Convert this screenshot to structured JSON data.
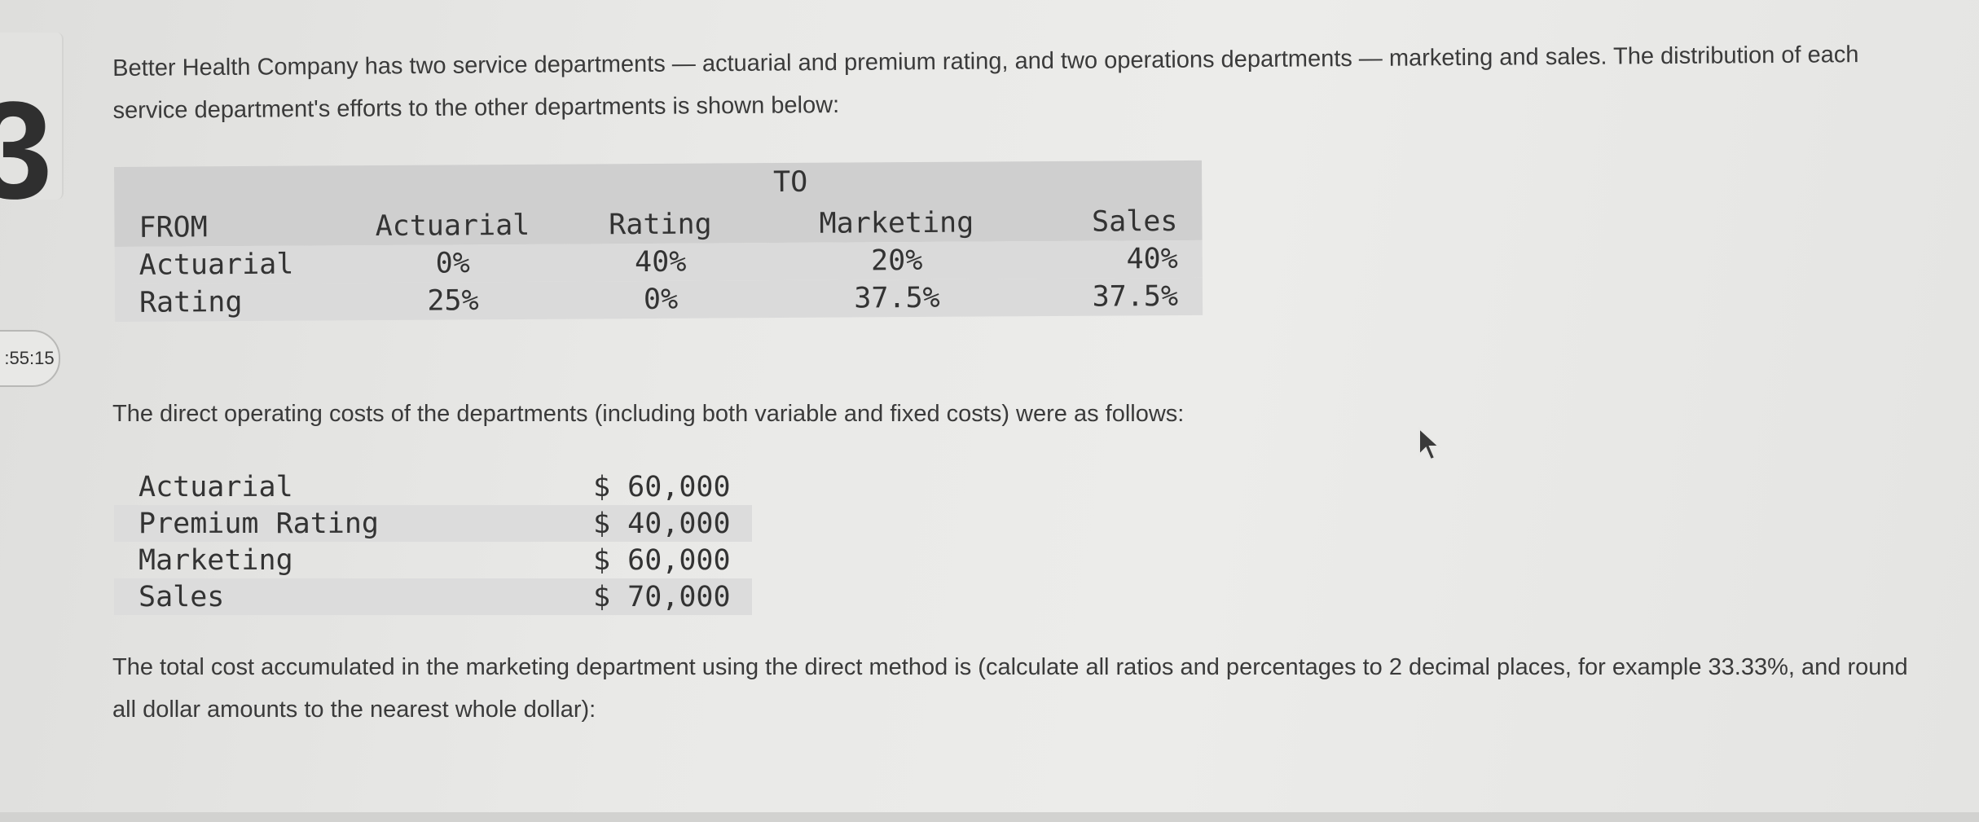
{
  "question_number": "3",
  "timer": ":55:15",
  "intro_text": "Better Health Company has two service departments — actuarial and premium rating, and two operations departments — marketing and sales. The distribution of each service department's efforts to the other departments is shown below:",
  "distribution_table": {
    "to_label": "TO",
    "headers": [
      "FROM",
      "Actuarial",
      "Rating",
      "Marketing",
      "Sales"
    ],
    "rows": [
      [
        "Actuarial",
        "0%",
        "40%",
        "20%",
        "40%"
      ],
      [
        "Rating",
        "25%",
        "0%",
        "37.5%",
        "37.5%"
      ]
    ]
  },
  "costs_intro": "The direct operating costs of the departments (including both variable and fixed costs) were as follows:",
  "costs_table": [
    {
      "name": "Actuarial",
      "amount": "$ 60,000"
    },
    {
      "name": "Premium Rating",
      "amount": "$ 40,000"
    },
    {
      "name": "Marketing",
      "amount": "$ 60,000"
    },
    {
      "name": "Sales",
      "amount": "$ 70,000"
    }
  ],
  "question_text": "The total cost accumulated in the marketing department using the direct method is (calculate all ratios and percentages to 2 decimal places, for example 33.33%, and round all dollar amounts to the nearest whole dollar):"
}
